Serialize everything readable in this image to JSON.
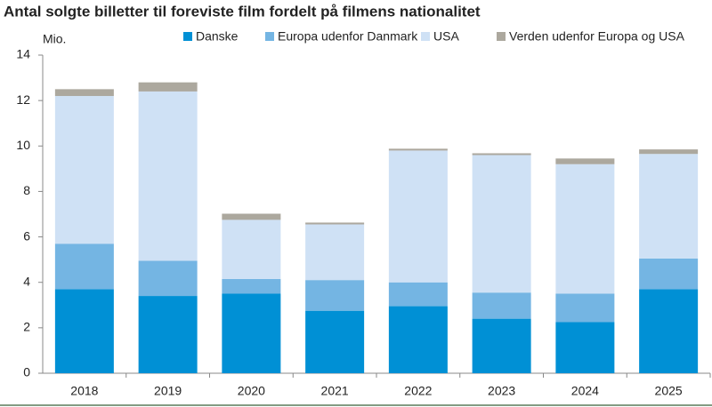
{
  "chart_data": {
    "type": "stacked_bar",
    "title": "Antal solgte billetter til foreviste film fordelt på filmens nationalitet",
    "y_label": "Mio.",
    "categories": [
      "2018",
      "2019",
      "2020",
      "2021",
      "2022",
      "2023",
      "2024",
      "2025"
    ],
    "series": [
      {
        "name": "Danske",
        "color": "#0090d5",
        "values": [
          3.7,
          3.4,
          3.5,
          2.75,
          2.95,
          2.4,
          2.25,
          3.7
        ]
      },
      {
        "name": "Europa udenfor Danmark",
        "color": "#74b5e3",
        "values": [
          2.0,
          1.55,
          0.65,
          1.35,
          1.05,
          1.15,
          1.25,
          1.35
        ]
      },
      {
        "name": "USA",
        "color": "#cfe1f5",
        "values": [
          6.5,
          7.45,
          2.6,
          2.45,
          5.8,
          6.05,
          5.7,
          4.6
        ]
      },
      {
        "name": "Verden udenfor Europa og USA",
        "color": "#aca89e",
        "values": [
          0.3,
          0.4,
          0.27,
          0.08,
          0.08,
          0.08,
          0.25,
          0.2
        ]
      }
    ],
    "ylim": [
      0,
      14
    ],
    "yticks": [
      0,
      2,
      4,
      6,
      8,
      10,
      12,
      14
    ],
    "legend": "top"
  }
}
